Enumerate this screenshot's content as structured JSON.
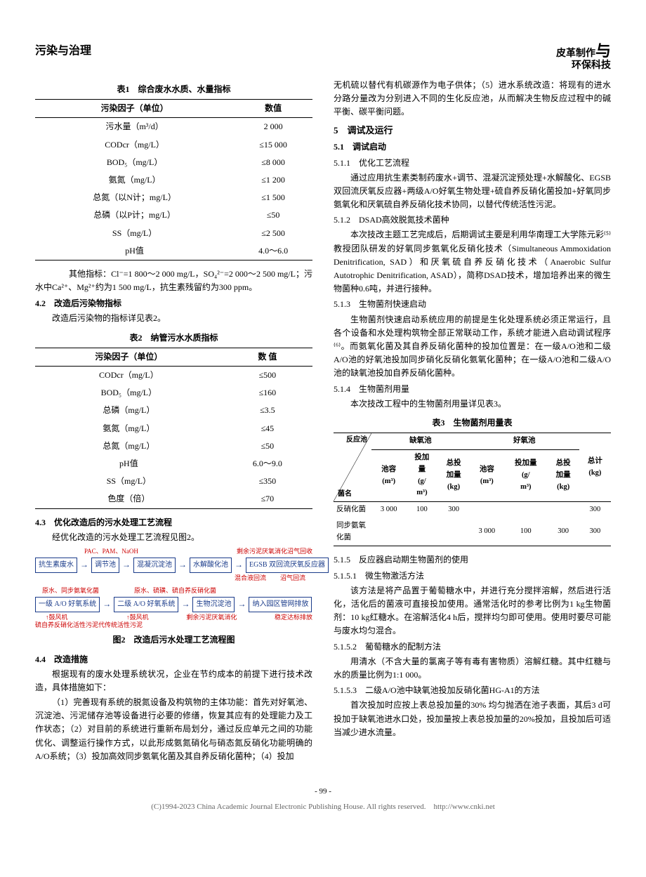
{
  "header": {
    "left": "污染与治理",
    "right_line1": "皮革制作",
    "right_accent": "与",
    "right_line2": "环保科技"
  },
  "table1": {
    "title": "表1　综合废水水质、水量指标",
    "col_header_1": "污染因子（单位）",
    "col_header_2": "数值",
    "rows": [
      {
        "k": "污水量（m³/d）",
        "v": "2 000"
      },
      {
        "k": "CODcr（mg/L）",
        "v": "≤15 000"
      },
      {
        "k": "BOD₅（mg/L）",
        "v": "≤8 000"
      },
      {
        "k": "氨氮（mg/L）",
        "v": "≤1 200"
      },
      {
        "k": "总氮（以N计；mg/L）",
        "v": "≤1 500"
      },
      {
        "k": "总磷（以P计；mg/L）",
        "v": "≤50"
      },
      {
        "k": "SS（mg/L）",
        "v": "≤2 500"
      },
      {
        "k": "pH值",
        "v": "4.0～6.0"
      }
    ]
  },
  "para_other_idx": "　　其他指标：Cl⁻=1 800～2 000 mg/L，SO₄²⁻=2 000～2 500 mg/L；污水中Ca²⁺、Mg²⁺约为1 500 mg/L，抗生素残留约为300 ppm。",
  "sec42_title": "4.2　改造后污染物指标",
  "sec42_body": "改造后污染物的指标详见表2。",
  "table2": {
    "title": "表2　纳管污水水质指标",
    "col_header_1": "污染因子（单位）",
    "col_header_2": "数 值",
    "rows": [
      {
        "k": "CODcr（mg/L）",
        "v": "≤500"
      },
      {
        "k": "BOD₅（mg/L）",
        "v": "≤160"
      },
      {
        "k": "总磷（mg/L）",
        "v": "≤3.5"
      },
      {
        "k": "氨氮（mg/L）",
        "v": "≤45"
      },
      {
        "k": "总氮（mg/L）",
        "v": "≤50"
      },
      {
        "k": "pH值",
        "v": "6.0～9.0"
      },
      {
        "k": "SS（mg/L）",
        "v": "≤350"
      },
      {
        "k": "色度（倍）",
        "v": "≤70"
      }
    ]
  },
  "sec43_title": "4.3　优化改造后的污水处理工艺流程",
  "sec43_body": "经优化改造的污水处理工艺流程见图2。",
  "flowchart": {
    "border_color": "#1a3b8a",
    "text_color": "#1a3b8a",
    "note_color": "#c00000",
    "row1_top_notes": [
      "PAC、PAM、NaOH",
      "",
      "剩余污泥厌氧消化",
      "沼气回收"
    ],
    "row1_nodes": [
      "抗生素废水",
      "调节池",
      "混凝沉淀池",
      "水解酸化池",
      "EGSB 双回流厌氧反应器"
    ],
    "row1_bot_notes": [
      "混合液回流",
      "沼气回流"
    ],
    "row2_top_notes": [
      "原水、同步氨氧化菌",
      "原水、硫磺、硫自养反硝化菌"
    ],
    "row2_nodes": [
      "一级 A/O 好氧系统",
      "二级 A/O 好氧系统",
      "生物沉淀池",
      "纳入园区管网排放"
    ],
    "row2_bot_notes_left": "鼓风机",
    "row2_bot_notes_right": "鼓风机",
    "row2_side_notes": [
      "剩余污泥厌氧消化",
      "稳定达标排放"
    ],
    "bottom_note": "硫自养反硝化活性污泥代传统活性污泥",
    "caption": "图2　改造后污水处理工艺流程图"
  },
  "sec44_title": "4.4　改造措施",
  "sec44_p1": "根据现有的废水处理系统状况，企业在节约成本的前提下进行技术改造，具体措施如下：",
  "sec44_p2": "（1）完善现有系统的脱氮设备及构筑物的主体功能：首先对好氧池、沉淀池、污泥储存池等设备进行必要的修缮，恢复其应有的处理能力及工作状态；（2）对目前的系统进行重新布局划分，通过反应单元之间的功能优化、调整运行操作方式，以此形成氨氮硝化与硝态氮反硝化功能明确的A/O系统；（3）投加高效同步氨氧化菌及其自养反硝化菌种；（4）投加",
  "right_first_para": "无机硫以替代有机碳源作为电子供体；（5）进水系统改造：将现有的进水分路分量改为分别进入不同的生化反应池，从而解决生物反应过程中的碱平衡、碳平衡问题。",
  "sec5_title": "5　调试及运行",
  "sec51_title": "5.1　调试启动",
  "sec511_title": "5.1.1　优化工艺流程",
  "sec511_body": "通过应用抗生素类制药废水+调节、混凝沉淀预处理+水解酸化、EGSB双回流厌氧反应器+两级A/O好氧生物处理+硫自养反硝化菌投加+好氧同步氨氧化和厌氧硫自养反硝化技术协同，以替代传统活性污泥。",
  "sec512_title": "5.1.2　DSAD高效脱氮技术菌种",
  "sec512_body": "本次技改主题工艺完成后，后期调试主要是利用华南理工大学陈元彩⁽⁵⁾教授团队研发的好氧同步氨氧化反硝化技术（Simultaneous Ammoxidation Denitrification, SAD）和厌氧硫自养反硝化技术（Anaerobic Sulfur Autotrophic Denitrification, ASAD），简称DSAD技术，增加培养出来的微生物菌种0.6吨，并进行接种。",
  "sec513_title": "5.1.3　生物菌剂快速启动",
  "sec513_body": "生物菌剂快速启动系统应用的前提是生化处理系统必须正常运行，且各个设备和水处理构筑物全部正常联动工作，系统才能进入启动调试程序⁽⁶⁾。而氨氧化菌及其自养反硝化菌种的投加位置是：在一级A/O池和二级A/O池的好氧池投加同步硝化反硝化氨氧化菌种；在一级A/O池和二级A/O池的缺氧池投加自养反硝化菌种。",
  "sec514_title": "5.1.4　生物菌剂用量",
  "sec514_body": "本次技改工程中的生物菌剂用量详见表3。",
  "table3": {
    "title": "表3　生物菌剂用量表",
    "diag_up": "反应池",
    "diag_dn": "菌名",
    "group1": "缺氧池",
    "group2": "好氧池",
    "cols": [
      "池容\n(m³)",
      "投加\n量\n(g/\nm³)",
      "总投\n加量\n(kg)",
      "池容\n(m³)",
      "投加量\n(g/\nm³)",
      "总投\n加量\n(kg)",
      "总计\n(kg)"
    ],
    "rows": [
      {
        "name": "反硝化菌",
        "c": [
          "3 000",
          "100",
          "300",
          "",
          "",
          "",
          "300"
        ]
      },
      {
        "name": "同步氨氧\n化菌",
        "c": [
          "",
          "",
          "",
          "3 000",
          "100",
          "300",
          "300"
        ]
      }
    ]
  },
  "sec515_title": "5.1.5　反应器启动期生物菌剂的使用",
  "sec5151_title": "5.1.5.1　微生物激活方法",
  "sec5151_body": "该方法是将产品置于葡萄糖水中，并进行充分搅拌溶解，然后进行活化，活化后的菌液可直接投加使用。通常活化时的参考比例为1 kg生物菌剂：10 kg红糖水。在溶解活化4 h后，搅拌均匀即可使用。使用时要尽可能与废水均匀混合。",
  "sec5152_title": "5.1.5.2　葡萄糖水的配制方法",
  "sec5152_body": "用清水（不含大量的氯离子等有毒有害物质）溶解红糖。其中红糖与水的质量比例为1:1 000。",
  "sec5153_title": "5.1.5.3　二级A/O池中缺氧池投加反硝化菌HG-A1的方法",
  "sec5153_body": "首次投加时应按上表总投加量的30% 均匀抛洒在池子表面，其后3 d可投加于缺氧池进水口处，投加量按上表总投加量的20%投加，且投加后可适当减少进水流量。",
  "footer": {
    "page": "- 99 -",
    "copy": "(C)1994-2023 China Academic Journal Electronic Publishing House. All rights reserved.　http://www.cnki.net"
  }
}
